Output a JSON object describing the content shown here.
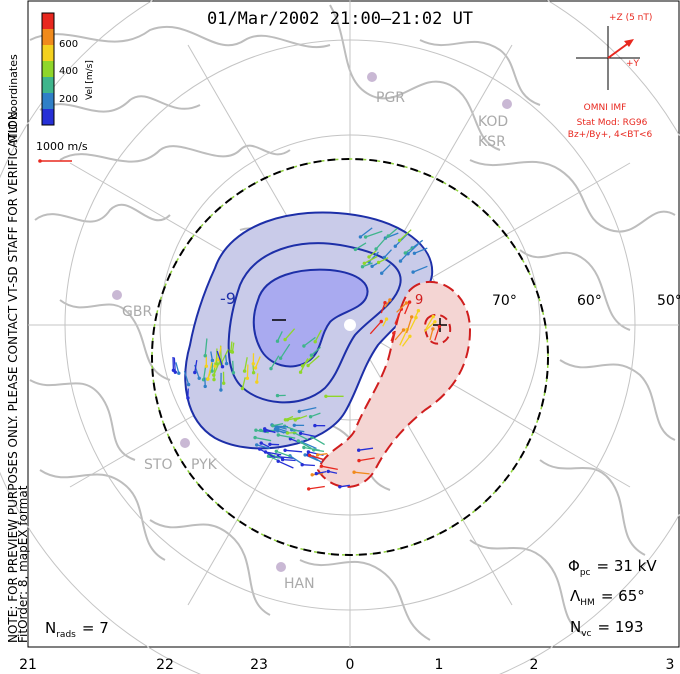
{
  "title": "01/Mar/2002 21:00–21:02 UT",
  "coordinates": "MLT coordinates",
  "note_line1": "NOTE: FOR PREVIEW PURPOSES ONLY. PLEASE CONTACT VT-SD STAFF FOR VERIFICATION.",
  "note_line2": "FitOrder: 8, mapEX format",
  "velocity_scale": {
    "label": "Vel [m/s]",
    "ticks": [
      "600",
      "400",
      "200"
    ],
    "colors": [
      "#e8281f",
      "#f08a1c",
      "#f4d11f",
      "#8fd62a",
      "#3fb58c",
      "#2f7fc7",
      "#2630d6"
    ],
    "reference_label": "1000 m/s"
  },
  "imf": {
    "z_label": "+Z (5 nT)",
    "y_label": "+Y",
    "source": "OMNI IMF",
    "stat_model": "Stat Mod: RG96",
    "condition": "Bz+/By+, 4<BT<6",
    "color": "#e8281f"
  },
  "lat_labels": [
    "70°",
    "60°",
    "50°"
  ],
  "contour_labels": [
    "-9",
    "9"
  ],
  "station_labels": [
    "PGR",
    "KOD",
    "KSR",
    "GBR",
    "STO",
    "PYK",
    "HAN"
  ],
  "stats": {
    "phi_symbol": "Φ",
    "phi_sub": "pc",
    "phi_value": "= 31 kV",
    "lambda_symbol": "Λ",
    "lambda_sub": "HM",
    "lambda_value": "= 65°",
    "nvc_symbol": "N",
    "nvc_sub": "vc",
    "nvc_value": "= 193",
    "nrads_symbol": "N",
    "nrads_sub": "rads",
    "nrads_value": "= 7"
  },
  "mlt_ticks": [
    "21",
    "22",
    "23",
    "0",
    "1",
    "2",
    "3"
  ],
  "colors": {
    "negative_cell_fill": "#c9cbe9",
    "negative_cell_core": "#a9aaf0",
    "negative_contour": "#1d2fa8",
    "positive_cell_fill": "#f4d5d3",
    "positive_contour": "#d01e1e",
    "coastline": "#bdbdbd",
    "grid": "#c4c4c4",
    "hm_boundary_dash": "#8ed13a"
  }
}
